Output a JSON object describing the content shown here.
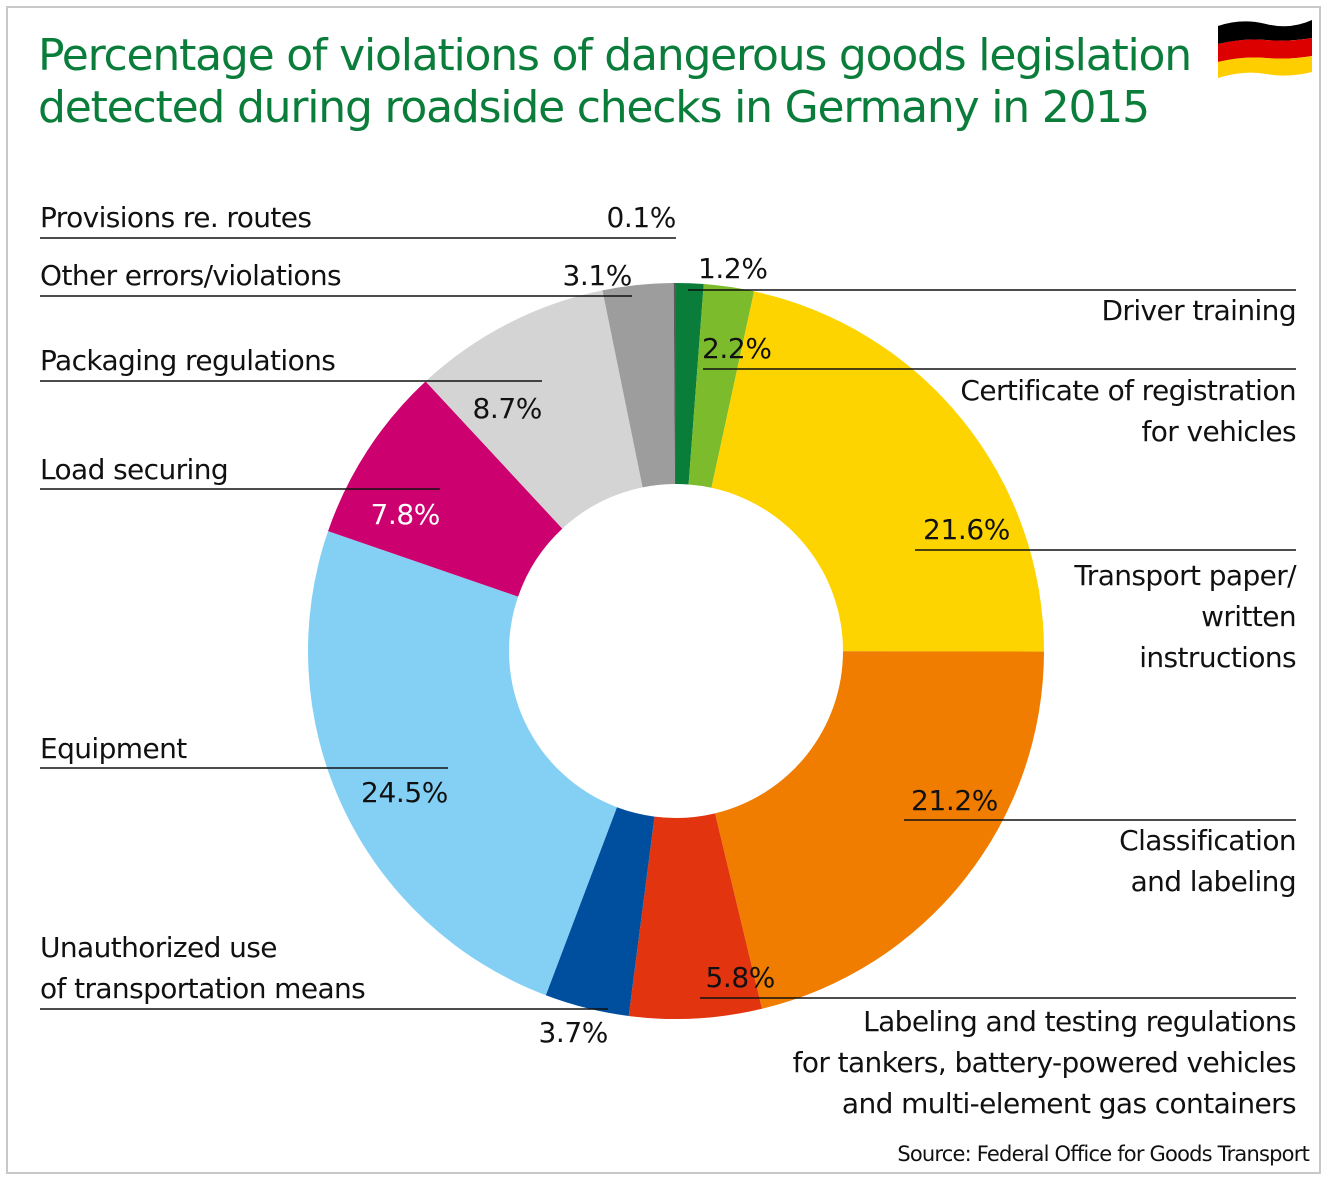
{
  "chart_data": {
    "type": "pie",
    "title_lines": [
      "Percentage of violations of dangerous goods legislation",
      "detected during roadside checks in Germany in 2015"
    ],
    "source": "Source: Federal Office for Goods Transport",
    "unit": "%",
    "slices": [
      {
        "label_lines": [
          "Driver training"
        ],
        "value": 1.2,
        "value_label": "1.2%",
        "color": "#0a7d3b"
      },
      {
        "label_lines": [
          "Certificate of registration",
          "for vehicles"
        ],
        "value": 2.2,
        "value_label": "2.2%",
        "color": "#7cbb2b"
      },
      {
        "label_lines": [
          "Transport paper/",
          "written",
          "instructions"
        ],
        "value": 21.6,
        "value_label": "21.6%",
        "color": "#fdd400"
      },
      {
        "label_lines": [
          "Classification",
          "and labeling"
        ],
        "value": 21.2,
        "value_label": "21.2%",
        "color": "#f07d00"
      },
      {
        "label_lines": [
          "Labeling and testing regulations",
          "for tankers, battery-powered vehicles",
          "and multi-element gas containers"
        ],
        "value": 5.8,
        "value_label": "5.8%",
        "color": "#e2340f"
      },
      {
        "label_lines": [
          "Unauthorized use",
          "of transportation means"
        ],
        "value": 3.7,
        "value_label": "3.7%",
        "color": "#004f9f"
      },
      {
        "label_lines": [
          "Equipment"
        ],
        "value": 24.5,
        "value_label": "24.5%",
        "color": "#84d0f5"
      },
      {
        "label_lines": [
          "Load securing"
        ],
        "value": 7.8,
        "value_label": "7.8%",
        "color": "#cc006e"
      },
      {
        "label_lines": [
          "Packaging regulations"
        ],
        "value": 8.7,
        "value_label": "8.7%",
        "color": "#d4d4d4"
      },
      {
        "label_lines": [
          "Other errors/violations"
        ],
        "value": 3.1,
        "value_label": "3.1%",
        "color": "#9d9d9d"
      },
      {
        "label_lines": [
          "Provisions re. routes"
        ],
        "value": 0.1,
        "value_label": "0.1%",
        "color": "#5a5a5a"
      }
    ],
    "colors": {
      "title": "#0a7d3b",
      "flag": [
        "#000000",
        "#dd0000",
        "#ffce00"
      ]
    }
  }
}
